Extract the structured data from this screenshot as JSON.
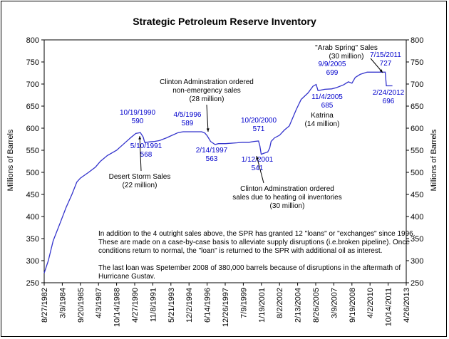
{
  "chart_data": {
    "type": "line",
    "title": "Strategic Petroleum Reserve Inventory",
    "ylabel_left": "Millions of Barrels",
    "ylabel_right": "Millions of Barrels",
    "ylim": [
      250,
      800
    ],
    "yticks": [
      250,
      300,
      350,
      400,
      450,
      500,
      550,
      600,
      650,
      700,
      750,
      800
    ],
    "xlim": [
      "1982-08-27",
      "2013-04-26"
    ],
    "xticks": [
      "8/27/1982",
      "3/9/1984",
      "9/20/1985",
      "4/3/1987",
      "10/14/1988",
      "4/27/1990",
      "11/8/1991",
      "5/21/1993",
      "12/2/1994",
      "6/14/1996",
      "12/26/1997",
      "7/9/1999",
      "1/19/2001",
      "8/2/2002",
      "2/13/2004",
      "8/26/2005",
      "3/9/2007",
      "9/19/2008",
      "4/2/2010",
      "10/14/2011",
      "4/26/2013"
    ],
    "grid": false,
    "color": "#3333cc",
    "series": [
      {
        "points": [
          [
            "1982-08-27",
            272
          ],
          [
            "1983-01-01",
            300
          ],
          [
            "1983-06-01",
            345
          ],
          [
            "1984-01-01",
            385
          ],
          [
            "1984-07-01",
            420
          ],
          [
            "1985-01-01",
            450
          ],
          [
            "1985-06-01",
            478
          ],
          [
            "1985-09-20",
            487
          ],
          [
            "1986-06-01",
            500
          ],
          [
            "1987-01-01",
            512
          ],
          [
            "1987-06-01",
            525
          ],
          [
            "1988-01-01",
            538
          ],
          [
            "1988-10-14",
            550
          ],
          [
            "1989-06-01",
            565
          ],
          [
            "1990-01-01",
            579
          ],
          [
            "1990-06-01",
            588
          ],
          [
            "1990-10-19",
            590
          ],
          [
            "1991-01-15",
            580
          ],
          [
            "1991-03-01",
            568
          ],
          [
            "1991-05-10",
            568
          ],
          [
            "1991-08-01",
            569
          ],
          [
            "1992-01-01",
            570
          ],
          [
            "1992-06-01",
            572
          ],
          [
            "1993-01-01",
            578
          ],
          [
            "1993-06-01",
            583
          ],
          [
            "1994-01-01",
            590
          ],
          [
            "1994-06-01",
            592
          ],
          [
            "1995-01-01",
            592
          ],
          [
            "1995-06-01",
            592
          ],
          [
            "1996-01-01",
            592
          ],
          [
            "1996-04-05",
            589
          ],
          [
            "1996-06-14",
            583
          ],
          [
            "1996-10-01",
            570
          ],
          [
            "1997-02-14",
            563
          ],
          [
            "1997-06-01",
            565
          ],
          [
            "1998-01-01",
            565
          ],
          [
            "1999-01-01",
            567
          ],
          [
            "1999-06-01",
            568
          ],
          [
            "2000-01-01",
            568
          ],
          [
            "2000-06-01",
            570
          ],
          [
            "2000-10-20",
            571
          ],
          [
            "2000-12-01",
            560
          ],
          [
            "2001-01-12",
            541
          ],
          [
            "2001-04-01",
            543
          ],
          [
            "2001-08-01",
            546
          ],
          [
            "2001-10-01",
            555
          ],
          [
            "2001-11-15",
            570
          ],
          [
            "2002-03-01",
            578
          ],
          [
            "2002-08-02",
            584
          ],
          [
            "2003-01-01",
            596
          ],
          [
            "2003-06-01",
            605
          ],
          [
            "2004-01-01",
            642
          ],
          [
            "2004-06-01",
            665
          ],
          [
            "2005-01-01",
            680
          ],
          [
            "2005-06-01",
            695
          ],
          [
            "2005-09-09",
            699
          ],
          [
            "2005-10-15",
            690
          ],
          [
            "2005-11-04",
            685
          ],
          [
            "2006-06-01",
            688
          ],
          [
            "2007-01-01",
            689
          ],
          [
            "2007-06-01",
            692
          ],
          [
            "2008-01-01",
            698
          ],
          [
            "2008-06-01",
            705
          ],
          [
            "2008-09-19",
            702
          ],
          [
            "2009-01-01",
            715
          ],
          [
            "2009-06-01",
            722
          ],
          [
            "2010-01-01",
            727
          ],
          [
            "2010-06-01",
            727
          ],
          [
            "2011-01-01",
            727
          ],
          [
            "2011-07-15",
            727
          ],
          [
            "2011-08-20",
            696
          ],
          [
            "2012-02-24",
            696
          ]
        ]
      }
    ],
    "annotations": [
      {
        "date": "10/19/1990",
        "value": "590",
        "color": "blue"
      },
      {
        "date": "5/10/1991",
        "value": "568",
        "color": "blue"
      },
      {
        "date": "4/5/1996",
        "value": "589",
        "color": "blue"
      },
      {
        "date": "2/14/1997",
        "value": "563",
        "color": "blue"
      },
      {
        "date": "10/20/2000",
        "value": "571",
        "color": "blue"
      },
      {
        "date": "1/12/2001",
        "value": "541",
        "color": "blue"
      },
      {
        "date": "9/9/2005",
        "value": "699",
        "color": "blue"
      },
      {
        "date": "11/4/2005",
        "value": "685",
        "color": "blue"
      },
      {
        "date": "7/15/2011",
        "value": "727",
        "color": "blue"
      },
      {
        "date": "2/24/2012",
        "value": "696",
        "color": "blue"
      }
    ],
    "notes": {
      "desert_storm": [
        "Desert Storm Sales",
        "(22 million)"
      ],
      "clinton_1": [
        "Clinton Adminstration ordered",
        "non-emergency sales",
        "(28 million)"
      ],
      "clinton_2": [
        "Clinton Adminstration ordered",
        "sales due to heating oil inventories",
        "(30 million)"
      ],
      "katrina": [
        "Katrina",
        "(14 million)"
      ],
      "arab_spring": [
        "\"Arab Spring\" Sales",
        "(30 million)"
      ],
      "body": [
        "In addition to the 4 outright sales above, the SPR has granted 12 \"loans\" or \"exchanges\" since 1996.",
        "These are made on a case-by-case basis to alleviate supply disruptions (i.e.broken pipeline).  Once",
        "conditions return to normal, the \"loan\" is returned to the SPR with additional oil as interest.",
        "",
        "The last loan was Spetember 2008 of 380,000 barrels because of disruptions in the aftermath of",
        "Hurricane Gustav."
      ]
    }
  }
}
